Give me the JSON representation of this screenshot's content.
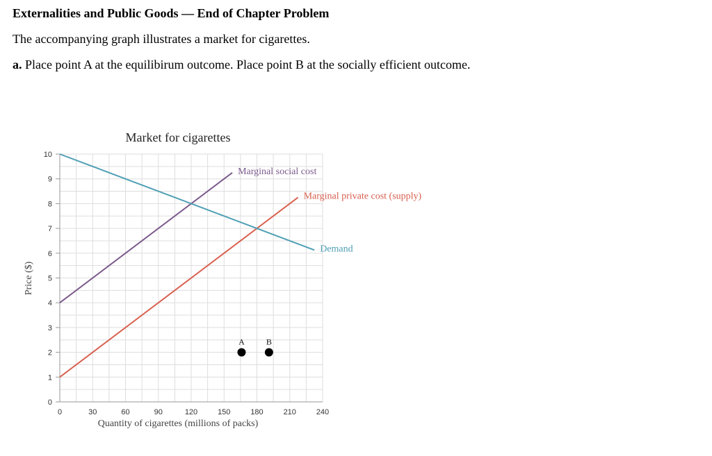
{
  "page": {
    "heading": "Externalities and Public Goods — End of Chapter Problem",
    "intro": "The accompanying graph illustrates a market for cigarettes.",
    "question_part": "a.",
    "question_text": " Place point A at the equilibirum outcome. Place point B at the socially efficient outcome."
  },
  "chart_data": {
    "type": "line",
    "title": "Market for cigarettes",
    "xlabel": "Quantity of cigarettes (millions of packs)",
    "ylabel": "Price ($)",
    "xlim": [
      0,
      240
    ],
    "ylim": [
      0,
      10
    ],
    "x_ticks": [
      0,
      30,
      60,
      90,
      120,
      150,
      180,
      210,
      240
    ],
    "y_ticks": [
      0,
      1,
      2,
      3,
      4,
      5,
      6,
      7,
      8,
      9,
      10
    ],
    "grid": true,
    "series": [
      {
        "name": "Marginal social cost",
        "color": "#7b5a8c",
        "x": [
          0,
          157.5
        ],
        "y": [
          4,
          9.25
        ]
      },
      {
        "name": "Marginal private cost (supply)",
        "color": "#d9604f",
        "x": [
          0,
          217.5
        ],
        "y": [
          1,
          8.25
        ]
      },
      {
        "name": "Demand",
        "color": "#4f9fb5",
        "x": [
          0,
          232.5
        ],
        "y": [
          10,
          6.125
        ]
      }
    ],
    "points": [
      {
        "label": "A",
        "x": 166,
        "y": 2,
        "color": "#000000"
      },
      {
        "label": "B",
        "x": 191,
        "y": 2,
        "color": "#000000"
      }
    ]
  }
}
